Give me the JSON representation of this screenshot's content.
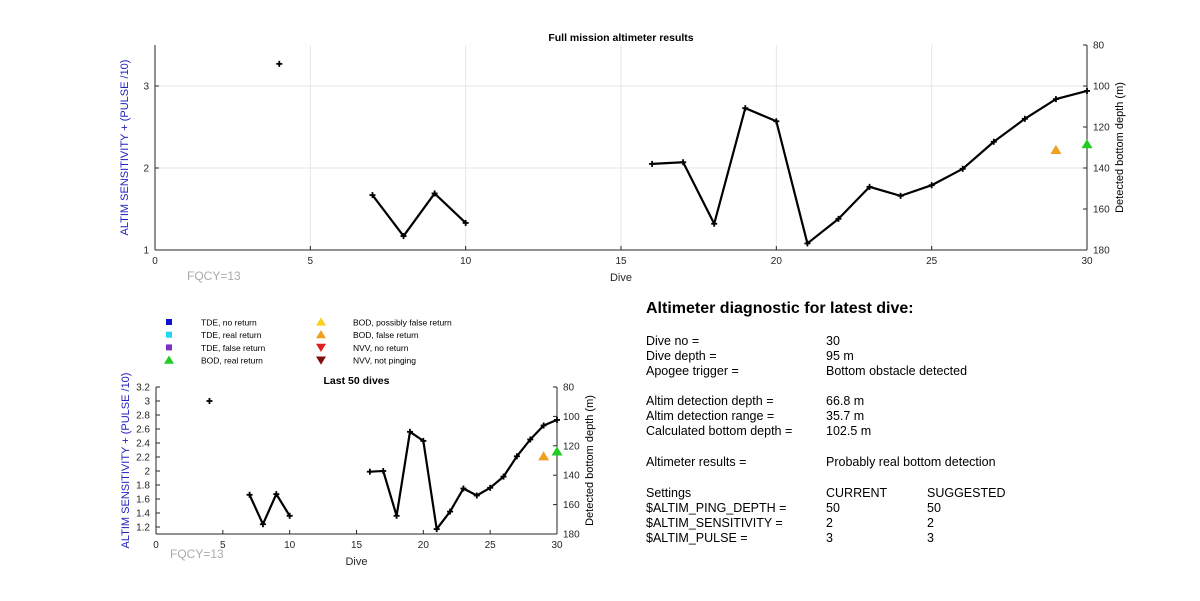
{
  "chart_data": [
    {
      "type": "line",
      "title": "Full mission altimeter results",
      "xlabel": "Dive",
      "ylabel_left": "ALTIM SENSITIVITY + (PULSE /10)",
      "ylabel_right": "Detected bottom depth (m)",
      "xlim": [
        0,
        30
      ],
      "ylim_left": [
        1,
        3.5
      ],
      "ylim_right_reversed": [
        80,
        180
      ],
      "xticks": [
        0,
        5,
        10,
        15,
        20,
        25,
        30
      ],
      "yticks_left": [
        1,
        2,
        3
      ],
      "yticks_right": [
        80,
        100,
        120,
        140,
        160,
        180
      ],
      "grid": true,
      "annotation": "FQCY=13",
      "series": [
        {
          "segments": [
            [
              [
                4,
                3.27
              ]
            ],
            [
              [
                7,
                1.67
              ],
              [
                8,
                1.17
              ],
              [
                9,
                1.69
              ],
              [
                10,
                1.33
              ]
            ],
            [
              [
                16,
                2.05
              ],
              [
                17,
                2.07
              ],
              [
                18,
                1.32
              ],
              [
                19,
                2.73
              ],
              [
                20,
                2.57
              ],
              [
                21,
                1.08
              ],
              [
                22,
                1.38
              ],
              [
                23,
                1.77
              ],
              [
                24,
                1.66
              ],
              [
                25,
                1.79
              ],
              [
                26,
                1.99
              ],
              [
                27,
                2.32
              ],
              [
                28,
                2.6
              ],
              [
                29,
                2.84
              ],
              [
                30,
                2.94
              ]
            ]
          ]
        }
      ],
      "markers": [
        {
          "type": "BOD, false return",
          "x": 29,
          "y": 2.22,
          "color": "#f0a020"
        },
        {
          "type": "BOD, real return",
          "x": 30,
          "y": 2.29,
          "color": "#22cc22"
        }
      ]
    },
    {
      "type": "line",
      "title": "Last 50 dives",
      "xlabel": "Dive",
      "ylabel_left": "ALTIM SENSITIVITY + (PULSE /10)",
      "ylabel_right": "Detected bottom depth (m)",
      "xlim": [
        0,
        30
      ],
      "ylim_left": [
        1.1,
        3.2
      ],
      "ylim_right_reversed": [
        80,
        180
      ],
      "xticks": [
        0,
        5,
        10,
        15,
        20,
        25,
        30
      ],
      "yticks_left": [
        1.2,
        1.4,
        1.6,
        1.8,
        2,
        2.2,
        2.4,
        2.6,
        2.8,
        3,
        3.2
      ],
      "yticks_right": [
        80,
        100,
        120,
        140,
        160,
        180
      ],
      "grid": false,
      "annotation": "FQCY=13",
      "series": [
        {
          "segments": [
            [
              [
                4,
                3.0
              ]
            ],
            [
              [
                7,
                1.66
              ],
              [
                8,
                1.24
              ],
              [
                9,
                1.67
              ],
              [
                10,
                1.36
              ]
            ],
            [
              [
                16,
                1.99
              ],
              [
                17,
                2.0
              ],
              [
                18,
                1.36
              ],
              [
                19,
                2.56
              ],
              [
                20,
                2.43
              ],
              [
                21,
                1.17
              ],
              [
                22,
                1.42
              ],
              [
                23,
                1.75
              ],
              [
                24,
                1.65
              ],
              [
                25,
                1.76
              ],
              [
                26,
                1.92
              ],
              [
                27,
                2.21
              ],
              [
                28,
                2.45
              ],
              [
                29,
                2.65
              ],
              [
                30,
                2.73
              ]
            ]
          ]
        }
      ],
      "markers": [
        {
          "type": "BOD, false return",
          "x": 29,
          "y": 2.21,
          "color": "#f0a020"
        },
        {
          "type": "BOD, real return",
          "x": 30,
          "y": 2.28,
          "color": "#22cc22"
        }
      ]
    }
  ],
  "legend": {
    "items": [
      {
        "label": "TDE, no return",
        "shape": "square",
        "color": "#1010d0",
        "col": 0,
        "row": 0
      },
      {
        "label": "TDE, real return",
        "shape": "square",
        "color": "#20d8f0",
        "col": 0,
        "row": 1
      },
      {
        "label": "TDE, false return",
        "shape": "square",
        "color": "#8030c0",
        "col": 0,
        "row": 2
      },
      {
        "label": "BOD, real return",
        "shape": "triangle-up",
        "color": "#22cc22",
        "col": 0,
        "row": 3
      },
      {
        "label": "BOD, possibly false return",
        "shape": "triangle-up",
        "color": "#f8d020",
        "col": 1,
        "row": 0
      },
      {
        "label": "BOD, false return",
        "shape": "triangle-up",
        "color": "#f0a020",
        "col": 1,
        "row": 1
      },
      {
        "label": "NVV, no return",
        "shape": "triangle-down",
        "color": "#e02020",
        "col": 1,
        "row": 2
      },
      {
        "label": "NVV, not pinging",
        "shape": "triangle-down",
        "color": "#801010",
        "col": 1,
        "row": 3
      }
    ]
  },
  "diagnostic": {
    "title": "Altimeter diagnostic for latest dive:",
    "rows": [
      {
        "label": "Dive no =",
        "value": "30"
      },
      {
        "label": "Dive depth =",
        "value": "95 m"
      },
      {
        "label": "Apogee trigger =",
        "value": "Bottom obstacle detected"
      },
      {
        "label": "Altim detection depth =",
        "value": "66.8 m"
      },
      {
        "label": "Altim detection range =",
        "value": "35.7 m"
      },
      {
        "label": "Calculated bottom depth =",
        "value": "102.5 m"
      },
      {
        "label": "Altimeter results =",
        "value": "Probably real bottom detection"
      }
    ],
    "settings_header": {
      "label": "Settings",
      "current": "CURRENT",
      "suggested": "SUGGESTED"
    },
    "settings": [
      {
        "label": "$ALTIM_PING_DEPTH =",
        "current": "50",
        "suggested": "50"
      },
      {
        "label": "$ALTIM_SENSITIVITY =",
        "current": "2",
        "suggested": "2"
      },
      {
        "label": "$ALTIM_PULSE =",
        "current": "3",
        "suggested": "3"
      }
    ]
  },
  "colors": {
    "axis_label": "#2020c0",
    "line": "#000000",
    "grid": "#e6e6e6",
    "annotation": "#aaaaaa"
  }
}
